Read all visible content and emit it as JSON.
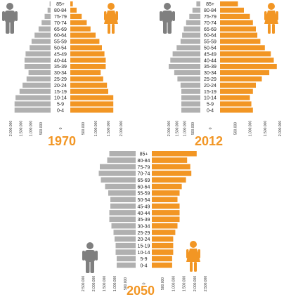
{
  "colors": {
    "male": "#b0b0b0",
    "female": "#f29624",
    "male_icon": "#7f7f7f",
    "year": "#f29624"
  },
  "icons": {
    "male": "man-figure-icon",
    "female": "woman-figure-icon"
  },
  "chart_data": [
    {
      "type": "bar",
      "orientation": "horizontal-pyramid",
      "title": "1970",
      "categories": [
        "85+",
        "80-84",
        "75-79",
        "70-74",
        "65-69",
        "60-64",
        "55-59",
        "50-54",
        "45-49",
        "40-44",
        "35-39",
        "30-34",
        "25-29",
        "20-24",
        "15-19",
        "10-14",
        "5-9",
        "0-4"
      ],
      "series": [
        {
          "values": [
            50000,
            150000,
            300000,
            450000,
            600000,
            800000,
            950000,
            1050000,
            1250000,
            1300000,
            1300000,
            1100000,
            1200000,
            1400000,
            1550000,
            1750000,
            1800000,
            1800000
          ]
        },
        {
          "values": [
            100000,
            250000,
            450000,
            650000,
            800000,
            1000000,
            1150000,
            1250000,
            1350000,
            1400000,
            1400000,
            1200000,
            1300000,
            1450000,
            1500000,
            1700000,
            1700000,
            1700000
          ]
        }
      ],
      "ticks": [
        "2.000.000",
        "1.500.000",
        "1.000.000",
        "500.000",
        "0",
        "500.000",
        "1.000.000",
        "1.500.000",
        "2.000.000"
      ],
      "xlim": [
        0,
        2000000
      ]
    },
    {
      "type": "bar",
      "orientation": "horizontal-pyramid",
      "title": "2012",
      "categories": [
        "85+",
        "80-84",
        "75-79",
        "70-74",
        "65-69",
        "60-64",
        "55-59",
        "50-54",
        "45-49",
        "40-44",
        "35-39",
        "30-34",
        "25-29",
        "20-24",
        "15-19",
        "10-14",
        "5-9",
        "0-4"
      ],
      "series": [
        {
          "values": [
            250000,
            500000,
            700000,
            900000,
            1050000,
            1150000,
            1250000,
            1500000,
            1750000,
            1900000,
            2000000,
            1650000,
            1450000,
            1250000,
            1200000,
            1200000,
            1200000,
            1200000
          ]
        },
        {
          "values": [
            600000,
            800000,
            1000000,
            1100000,
            1200000,
            1250000,
            1350000,
            1500000,
            1700000,
            1800000,
            1900000,
            1650000,
            1400000,
            1200000,
            1100000,
            1000000,
            1050000,
            1100000
          ]
        }
      ],
      "ticks": [
        "2.000.000",
        "1.500.000",
        "1.000.000",
        "500.000",
        "0",
        "500.000",
        "1.000.000",
        "1.500.000",
        "2.000.000"
      ],
      "xlim": [
        0,
        2000000
      ]
    },
    {
      "type": "bar",
      "orientation": "horizontal-pyramid",
      "title": "2050",
      "categories": [
        "85+",
        "80-84",
        "75-79",
        "70-74",
        "65-69",
        "60-64",
        "55-59",
        "50-54",
        "45-49",
        "40-44",
        "35-39",
        "30-34",
        "25-29",
        "20-24",
        "15-19",
        "10-14",
        "5-9",
        "0-4"
      ],
      "series": [
        {
          "values": [
            1250000,
            1350000,
            1700000,
            1750000,
            1650000,
            1450000,
            1300000,
            1200000,
            1200000,
            1250000,
            1250000,
            1150000,
            1050000,
            1000000,
            950000,
            950000,
            900000,
            900000
          ]
        },
        {
          "values": [
            2100000,
            1650000,
            1800000,
            1850000,
            1600000,
            1400000,
            1300000,
            1200000,
            1300000,
            1300000,
            1300000,
            1200000,
            1100000,
            1000000,
            1000000,
            1000000,
            950000,
            950000
          ]
        }
      ],
      "ticks": [
        "2.500.000",
        "2.000.000",
        "1.500.000",
        "1.000.000",
        "500.000",
        "0",
        "500.000",
        "1.000.000",
        "1.500.000",
        "2.000.000",
        "2.500.000"
      ],
      "xlim": [
        0,
        2500000
      ]
    }
  ]
}
